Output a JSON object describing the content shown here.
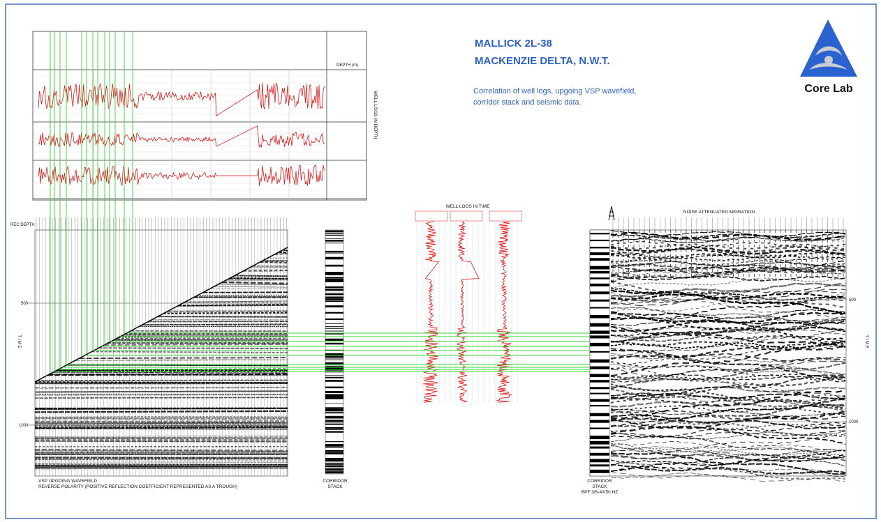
{
  "header": {
    "title_line1": "MALLICK 2L-38",
    "title_line2": "MACKENZIE DELTA, N.W.T.",
    "description_line1": "Correlation of well logs, upgoing VSP wavefield,",
    "description_line2": "corridor stack and seismic data.",
    "logo_text": "Core Lab"
  },
  "depth_logs": {
    "label": "WELL LOGS IN DEPTH",
    "depth_header": "DEPTH (m)"
  },
  "vsp": {
    "rec_depth_label": "REC DEPTH",
    "time_label": "T I M E",
    "time_ticks": [
      "500",
      "1000"
    ],
    "caption_line1": "VSP UPGOING WAVEFIELD",
    "caption_line2": "REVERSE POLARITY (POSITIVE REFLECTION COEFFICIENT REPRESENTED AS A TROUGH)"
  },
  "corridor_stack": {
    "label_line1": "CORRIDOR",
    "label_line2": "STACK"
  },
  "time_logs": {
    "title": "WELL LOGS IN TIME"
  },
  "seismic": {
    "title": "NOISE ATTENUATED MIGRATION",
    "time_ticks": [
      "500",
      "1000"
    ],
    "time_label": "T I M E",
    "stack_label_line1": "CORRIDOR",
    "stack_label_line2": "STACK",
    "filter": "BPF 3/5-40/50 HZ"
  }
}
